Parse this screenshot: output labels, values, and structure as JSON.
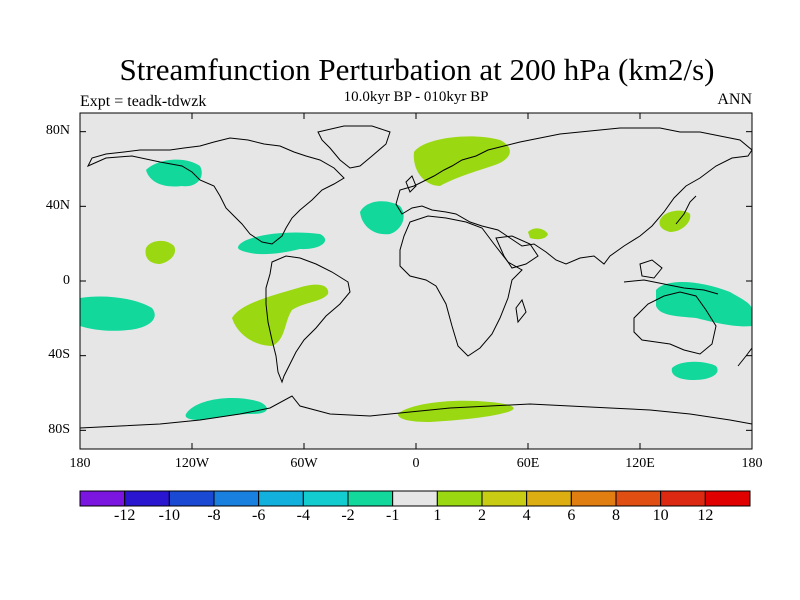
{
  "title": "Streamfunction Perturbation at 200 hPa (km2/s)",
  "subtitle": "10.0kyr BP - 010kyr BP",
  "left_label": "Expt = teadk-tdwzk",
  "right_label": "ANN",
  "axes": {
    "lat_ticks": [
      "80N",
      "40N",
      "0",
      "40S",
      "80S"
    ],
    "lon_ticks": [
      "180",
      "120W",
      "60W",
      "0",
      "60E",
      "120E",
      "180"
    ]
  },
  "colorbar": {
    "labels": [
      "-12",
      "-10",
      "-8",
      "-6",
      "-4",
      "-2",
      "-1",
      "1",
      "2",
      "4",
      "6",
      "8",
      "10",
      "12"
    ],
    "colors": [
      "#7a16e0",
      "#2a16d0",
      "#1a4ad4",
      "#1a80e0",
      "#12b0dc",
      "#12ccd0",
      "#12d89c",
      "#e6e6e6",
      "#9ad812",
      "#c8cc12",
      "#dcae12",
      "#e07e12",
      "#e04e12",
      "#dc2a12",
      "#e00000"
    ]
  },
  "colors": {
    "background": "#e6e6e6",
    "negative": "#12d89c",
    "positive": "#9ad812"
  },
  "chart_data": {
    "type": "map",
    "projection": "cylindrical-equidistant",
    "lon_range": [
      -180,
      180
    ],
    "lat_range": [
      -90,
      90
    ],
    "units": "km2/s",
    "anomaly_regions": [
      {
        "name": "N Pacific / Alaska",
        "center": [
          -133,
          58
        ],
        "sign": "negative",
        "level": "-2 to -1"
      },
      {
        "name": "Central N Pacific",
        "center": [
          -135,
          15
        ],
        "sign": "positive",
        "level": "1 to 2"
      },
      {
        "name": "Caribbean",
        "center": [
          -72,
          21
        ],
        "sign": "negative",
        "level": "-2 to -1"
      },
      {
        "name": "Subtropical N Atlantic",
        "center": [
          -20,
          33
        ],
        "sign": "negative",
        "level": "-2 to -1"
      },
      {
        "name": "Scandinavia / N Europe",
        "center": [
          17,
          67
        ],
        "sign": "positive",
        "level": "1 to 2"
      },
      {
        "name": "Arabian Sea",
        "center": [
          65,
          25
        ],
        "sign": "positive",
        "level": "1 to 2"
      },
      {
        "name": "Japan",
        "center": [
          139,
          32
        ],
        "sign": "positive",
        "level": "1 to 2"
      },
      {
        "name": "S Pacific",
        "center": [
          -162,
          -18
        ],
        "sign": "negative",
        "level": "-2 to -1"
      },
      {
        "name": "SE Pacific / Atlantic",
        "center": [
          -70,
          -18
        ],
        "sign": "positive",
        "level": "1 to 2"
      },
      {
        "name": "Indonesia / Australia",
        "center": [
          150,
          -13
        ],
        "sign": "negative",
        "level": "-2 to -1"
      },
      {
        "name": "Tasman Sea",
        "center": [
          150,
          -48
        ],
        "sign": "negative",
        "level": "-2 to -1"
      },
      {
        "name": "Southern Ocean Pacific",
        "center": [
          -105,
          -68
        ],
        "sign": "negative",
        "level": "-2 to -1"
      },
      {
        "name": "Southern Ocean Atlantic/Indian",
        "center": [
          30,
          -70
        ],
        "sign": "positive",
        "level": "1 to 2"
      }
    ]
  }
}
